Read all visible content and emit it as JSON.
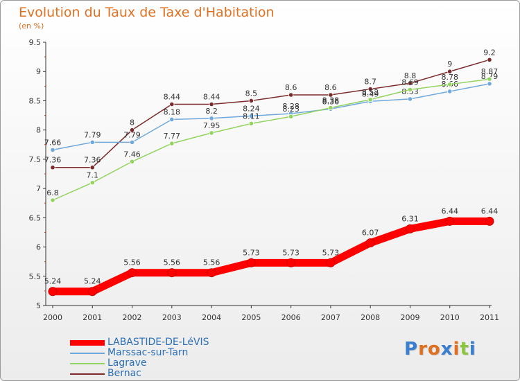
{
  "title": "Evolution du Taux de Taxe d'Habitation",
  "unit_label": "(en %)",
  "logo": {
    "letters": [
      "P",
      "r",
      "o",
      "x",
      "i",
      "t",
      "i"
    ],
    "colors": [
      "#3a7ed0",
      "#e07020",
      "#e07020",
      "#3a7ed0",
      "#e07020",
      "#8cc63f",
      "#3a7ed0"
    ]
  },
  "chart_data": {
    "type": "line",
    "title": "Evolution du Taux de Taxe d'Habitation",
    "ylabel": "(en %)",
    "xlabel": "",
    "categories": [
      "2000",
      "2001",
      "2002",
      "2003",
      "2004",
      "2005",
      "2006",
      "2007",
      "2008",
      "2009",
      "2010",
      "2011"
    ],
    "ylim": [
      5,
      9.5
    ],
    "yticks": [
      "5",
      "5.5",
      "6",
      "6.5",
      "7",
      "7.5",
      "8",
      "8.5",
      "9",
      "9.5"
    ],
    "grid": false,
    "legend_position": "bottom-left",
    "series": [
      {
        "name": "LABASTIDE-DE-LéVIS",
        "color": "#ff0000",
        "values": [
          5.24,
          5.24,
          5.56,
          5.56,
          5.56,
          5.73,
          5.73,
          5.73,
          6.07,
          6.31,
          6.44,
          6.44
        ],
        "labels": [
          "5.24",
          "5.24",
          "5.56",
          "5.56",
          "5.56",
          "5.73",
          "5.73",
          "5.73",
          "6.07",
          "6.31",
          "6.44",
          "6.44"
        ]
      },
      {
        "name": "Marssac-sur-Tarn",
        "color": "#6fa8dc",
        "values": [
          7.66,
          7.79,
          7.79,
          8.18,
          8.2,
          8.24,
          8.28,
          8.36,
          8.49,
          8.53,
          8.66,
          8.79
        ],
        "labels": [
          "7.66",
          "7.79",
          "7.79",
          "8.18",
          "8.2",
          "8.24",
          "8.28",
          "8.36",
          "8.49",
          "8.53",
          "8.66",
          "8.79"
        ]
      },
      {
        "name": "Lagrave",
        "color": "#93d35f",
        "values": [
          6.8,
          7.1,
          7.46,
          7.77,
          7.95,
          8.11,
          8.23,
          8.38,
          8.52,
          8.69,
          8.78,
          8.87
        ],
        "labels": [
          "6.8",
          "7.1",
          "7.46",
          "7.77",
          "7.95",
          "8.11",
          "8.23",
          "8.38",
          "8.52",
          "8.69",
          "8.78",
          "8.87"
        ]
      },
      {
        "name": "Bernac",
        "color": "#7a2a2a",
        "values": [
          7.36,
          7.36,
          8.0,
          8.44,
          8.44,
          8.5,
          8.6,
          8.6,
          8.7,
          8.8,
          9.0,
          9.2
        ],
        "labels": [
          "7.36",
          "7.36",
          "8",
          "8.44",
          "8.44",
          "8.5",
          "8.6",
          "8.6",
          "8.7",
          "8.8",
          "9",
          "9.2"
        ]
      }
    ]
  }
}
